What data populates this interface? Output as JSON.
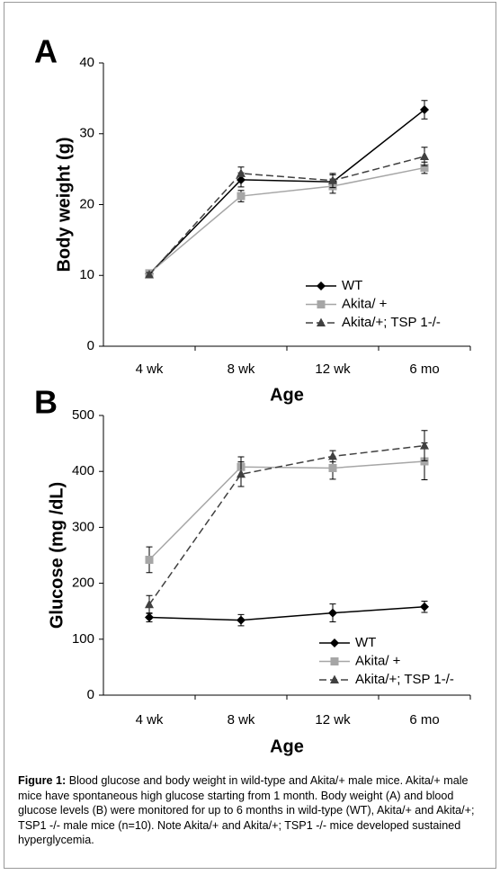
{
  "chart_data": [
    {
      "type": "line",
      "panel_label": "A",
      "x_label": "Age",
      "y_label": "Body weight (g)",
      "categories": [
        "4 wk",
        "8 wk",
        "12 wk",
        "6 mo"
      ],
      "ylim": [
        0,
        40
      ],
      "yticks": [
        0,
        10,
        20,
        30,
        40
      ],
      "grid": false,
      "series": [
        {
          "name": "WT",
          "color": "#000000",
          "marker": "diamond",
          "line_style": "solid",
          "values": [
            10.2,
            23.5,
            23.2,
            33.4
          ],
          "errors": [
            0.3,
            1.0,
            1.0,
            1.3
          ]
        },
        {
          "name": "Akita/ +",
          "color": "#a6a6a6",
          "marker": "square",
          "line_style": "solid",
          "values": [
            10.3,
            21.2,
            22.6,
            25.2
          ],
          "errors": [
            0.3,
            0.8,
            1.0,
            0.8
          ]
        },
        {
          "name": "Akita/+; TSP 1-/-",
          "color": "#404040",
          "marker": "triangle",
          "line_style": "dashed",
          "values": [
            10.1,
            24.4,
            23.4,
            26.8
          ],
          "errors": [
            0.3,
            0.9,
            1.0,
            1.3
          ]
        }
      ]
    },
    {
      "type": "line",
      "panel_label": "B",
      "x_label": "Age",
      "y_label": "Glucose (mg /dL)",
      "categories": [
        "4 wk",
        "8 wk",
        "12 wk",
        "6 mo"
      ],
      "ylim": [
        0,
        500
      ],
      "yticks": [
        0,
        100,
        200,
        300,
        400,
        500
      ],
      "grid": false,
      "series": [
        {
          "name": "WT",
          "color": "#000000",
          "marker": "diamond",
          "line_style": "solid",
          "values": [
            139,
            134,
            147,
            158
          ],
          "errors": [
            8,
            10,
            16,
            10
          ]
        },
        {
          "name": "Akita/ +",
          "color": "#a6a6a6",
          "marker": "square",
          "line_style": "solid",
          "values": [
            242,
            408,
            406,
            418
          ],
          "errors": [
            23,
            18,
            20,
            33
          ]
        },
        {
          "name": "Akita/+; TSP 1-/-",
          "color": "#404040",
          "marker": "triangle",
          "line_style": "dashed",
          "values": [
            162,
            395,
            427,
            446
          ],
          "errors": [
            16,
            22,
            10,
            27
          ]
        }
      ]
    }
  ],
  "caption": {
    "label": "Figure 1:",
    "text": "Blood glucose and body weight in wild-type and Akita/+ male mice. Akita/+ male mice have spontaneous high glucose starting from 1 month. Body weight (A) and blood glucose levels (B) were monitored for up to 6 months in wild-type (WT), Akita/+ and Akita/+; TSP1 -/- male mice (n=10). Note Akita/+ and Akita/+; TSP1 -/- mice developed sustained hyperglycemia."
  }
}
